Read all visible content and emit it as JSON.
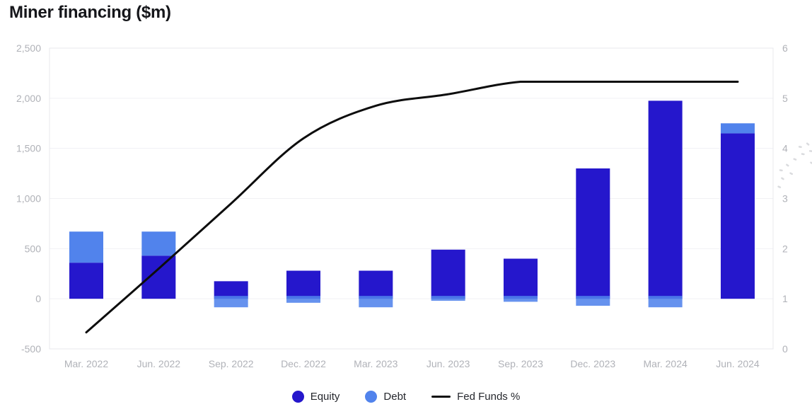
{
  "chart_data": {
    "type": "bar+line",
    "title": "Miner financing ($m)",
    "categories": [
      "Mar. 2022",
      "Jun. 2022",
      "Sep. 2022",
      "Dec. 2022",
      "Mar. 2023",
      "Jun. 2023",
      "Sep. 2023",
      "Dec. 2023",
      "Mar. 2024",
      "Jun. 2024"
    ],
    "series": [
      {
        "name": "Equity",
        "type": "bar",
        "color": "#2517cc",
        "values": [
          360,
          430,
          175,
          280,
          280,
          490,
          400,
          1300,
          1975,
          1650
        ]
      },
      {
        "name": "Debt",
        "type": "bar",
        "color": "#5183ec",
        "values": [
          310,
          240,
          -85,
          -40,
          -85,
          -20,
          -30,
          -70,
          -85,
          100
        ]
      },
      {
        "name": "Fed Funds %",
        "type": "line",
        "axis": "right",
        "color": "#0d0d0d",
        "values": [
          0.33,
          1.6,
          2.9,
          4.2,
          4.85,
          5.08,
          5.33,
          5.33,
          5.33,
          5.33
        ]
      }
    ],
    "left_axis": {
      "min": -500,
      "max": 2500,
      "step": 500,
      "tick_labels": [
        "2,500",
        "2,000",
        "1,500",
        "1,000",
        "500",
        "0",
        "-500"
      ]
    },
    "right_axis": {
      "min": 0,
      "max": 6,
      "step": 1,
      "tick_labels": [
        "6",
        "5",
        "4",
        "3",
        "2",
        "1",
        "0"
      ]
    },
    "grid": true,
    "legend_position": "bottom"
  },
  "legend": {
    "items": [
      {
        "label": "Equity",
        "swatch": "dot",
        "color": "#2517cc"
      },
      {
        "label": "Debt",
        "swatch": "dot",
        "color": "#5183ec"
      },
      {
        "label": "Fed Funds %",
        "swatch": "line",
        "color": "#0d0d0d"
      }
    ]
  },
  "colors": {
    "background": "#ffffff",
    "title": "#15161a",
    "axis_text": "#b0b2b8",
    "grid": "#f1f1f4",
    "plot_border": "#e8e9ee",
    "legend_text": "#26282e",
    "watermark": "#d2d3d7"
  }
}
